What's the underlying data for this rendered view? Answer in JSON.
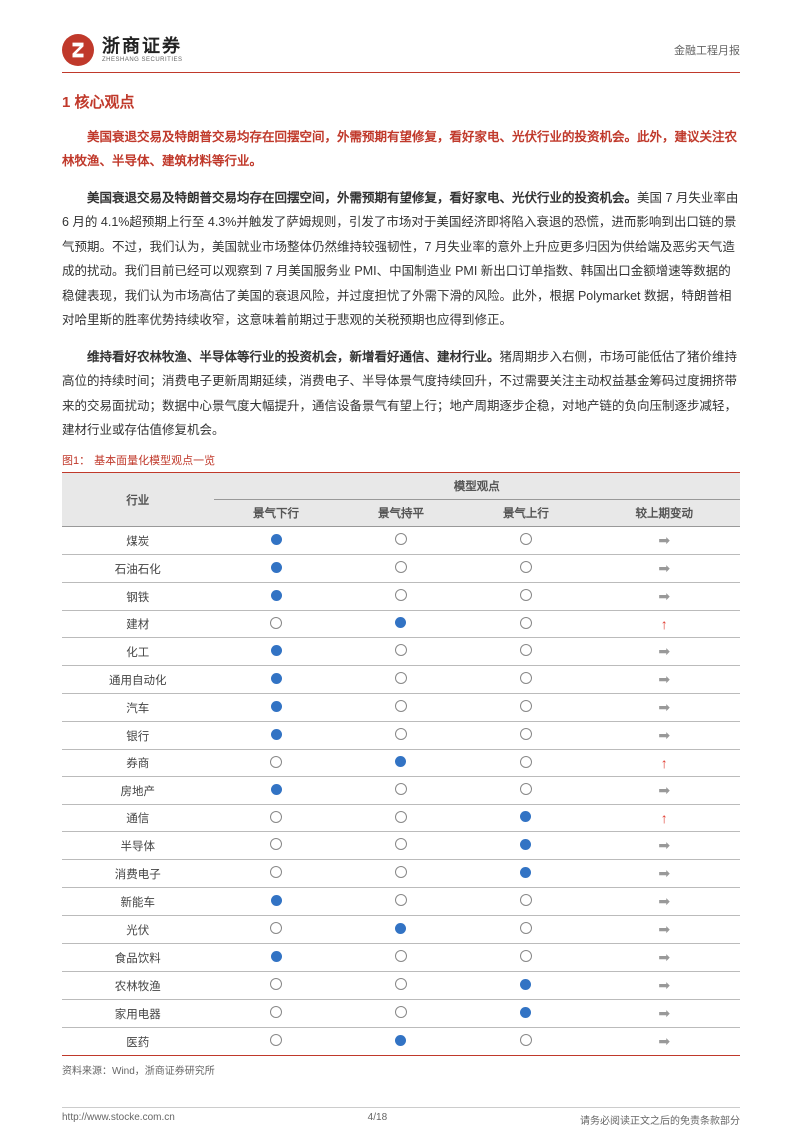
{
  "header": {
    "logo_cn": "浙商证券",
    "logo_en": "ZHESHANG SECURITIES",
    "right_text": "金融工程月报"
  },
  "section_title": "1 核心观点",
  "lead": "美国衰退交易及特朗普交易均存在回摆空间，外需预期有望修复，看好家电、光伏行业的投资机会。此外，建议关注农林牧渔、半导体、建筑材料等行业。",
  "para1_bold": "美国衰退交易及特朗普交易均存在回摆空间，外需预期有望修复，看好家电、光伏行业的投资机会。",
  "para1_rest": "美国 7 月失业率由 6 月的 4.1%超预期上行至 4.3%并触发了萨姆规则，引发了市场对于美国经济即将陷入衰退的恐慌，进而影响到出口链的景气预期。不过，我们认为，美国就业市场整体仍然维持较强韧性，7 月失业率的意外上升应更多归因为供给端及恶劣天气造成的扰动。我们目前已经可以观察到 7 月美国服务业 PMI、中国制造业 PMI 新出口订单指数、韩国出口金额增速等数据的稳健表现，我们认为市场高估了美国的衰退风险，并过度担忧了外需下滑的风险。此外，根据 Polymarket 数据，特朗普相对哈里斯的胜率优势持续收窄，这意味着前期过于悲观的关税预期也应得到修正。",
  "para2_bold": "维持看好农林牧渔、半导体等行业的投资机会，新增看好通信、建材行业。",
  "para2_rest": "猪周期步入右侧，市场可能低估了猪价维持高位的持续时间；消费电子更新周期延续，消费电子、半导体景气度持续回升，不过需要关注主动权益基金筹码过度拥挤带来的交易面扰动；数据中心景气度大幅提升，通信设备景气有望上行；地产周期逐步企稳，对地产链的负向压制逐步减轻，建材行业或存估值修复机会。",
  "figure": {
    "label": "图1：",
    "name": "基本面量化模型观点一览"
  },
  "table": {
    "header_industry": "行业",
    "header_model": "模型观点",
    "cols": [
      "景气下行",
      "景气持平",
      "景气上行",
      "较上期变动"
    ],
    "rows": [
      {
        "name": "煤炭",
        "cells": [
          "filled",
          "empty",
          "empty",
          "flat"
        ]
      },
      {
        "name": "石油石化",
        "cells": [
          "filled",
          "empty",
          "empty",
          "flat"
        ]
      },
      {
        "name": "钢铁",
        "cells": [
          "filled",
          "empty",
          "empty",
          "flat"
        ]
      },
      {
        "name": "建材",
        "cells": [
          "empty",
          "filled",
          "empty",
          "up"
        ]
      },
      {
        "name": "化工",
        "cells": [
          "filled",
          "empty",
          "empty",
          "flat"
        ]
      },
      {
        "name": "通用自动化",
        "cells": [
          "filled",
          "empty",
          "empty",
          "flat"
        ]
      },
      {
        "name": "汽车",
        "cells": [
          "filled",
          "empty",
          "empty",
          "flat"
        ]
      },
      {
        "name": "银行",
        "cells": [
          "filled",
          "empty",
          "empty",
          "flat"
        ]
      },
      {
        "name": "券商",
        "cells": [
          "empty",
          "filled",
          "empty",
          "up"
        ]
      },
      {
        "name": "房地产",
        "cells": [
          "filled",
          "empty",
          "empty",
          "flat"
        ]
      },
      {
        "name": "通信",
        "cells": [
          "empty",
          "empty",
          "filled",
          "up"
        ]
      },
      {
        "name": "半导体",
        "cells": [
          "empty",
          "empty",
          "filled",
          "flat"
        ]
      },
      {
        "name": "消费电子",
        "cells": [
          "empty",
          "empty",
          "filled",
          "flat"
        ]
      },
      {
        "name": "新能车",
        "cells": [
          "filled",
          "empty",
          "empty",
          "flat"
        ]
      },
      {
        "name": "光伏",
        "cells": [
          "empty",
          "filled",
          "empty",
          "flat"
        ]
      },
      {
        "name": "食品饮料",
        "cells": [
          "filled",
          "empty",
          "empty",
          "flat"
        ]
      },
      {
        "name": "农林牧渔",
        "cells": [
          "empty",
          "empty",
          "filled",
          "flat"
        ]
      },
      {
        "name": "家用电器",
        "cells": [
          "empty",
          "empty",
          "filled",
          "flat"
        ]
      },
      {
        "name": "医药",
        "cells": [
          "empty",
          "filled",
          "empty",
          "flat"
        ]
      }
    ]
  },
  "source": "资料来源：Wind，浙商证券研究所",
  "footer": {
    "left": "http://www.stocke.com.cn",
    "center": "4/18",
    "right": "请务必阅读正文之后的免责条款部分"
  },
  "colors": {
    "brand_red": "#c0392b",
    "dot_blue": "#3273c4",
    "arrow_red": "#e03a2f",
    "arrow_grey": "#999999"
  }
}
